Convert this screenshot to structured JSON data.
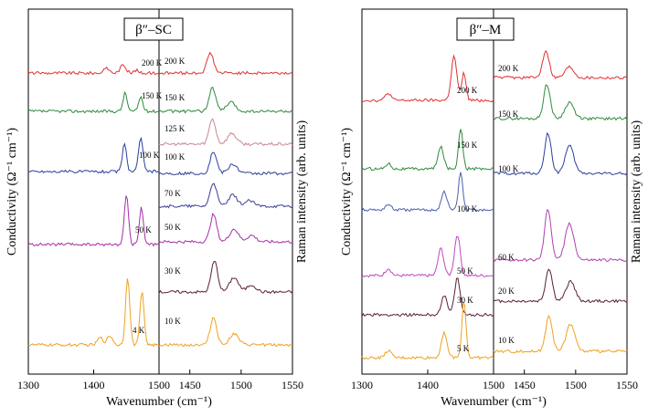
{
  "chart_data": [
    {
      "type": "line",
      "title": "β″–SC",
      "xlabel": "Wavenumber (cm⁻¹)",
      "ylabel_left": "Conductivity (Ω⁻¹ cm⁻¹)",
      "ylabel_right": "Raman intensity (arb. units)",
      "left_panel": {
        "xlim": [
          1300,
          1500
        ],
        "ticks": [
          {
            "value": 1300,
            "label": "1300"
          },
          {
            "value": 1400,
            "label": "1400"
          },
          {
            "value": 1500,
            "label": "1500"
          }
        ],
        "series": [
          {
            "name": "200 K",
            "color": "#e03030",
            "peaks": [
              [
                1420,
                5
              ],
              [
                1445,
                9
              ],
              [
                1465,
                3
              ]
            ]
          },
          {
            "name": "150 K",
            "color": "#2f8a3a",
            "peaks": [
              [
                1448,
                20
              ],
              [
                1472,
                16
              ]
            ]
          },
          {
            "name": "100 K",
            "color": "#2a3f9e",
            "peaks": [
              [
                1447,
                30
              ],
              [
                1472,
                38
              ]
            ]
          },
          {
            "name": "50 K",
            "color": "#a62ea6",
            "peaks": [
              [
                1450,
                55
              ],
              [
                1473,
                40
              ]
            ]
          },
          {
            "name": "4 K",
            "color": "#f0a020",
            "peaks": [
              [
                1452,
                75
              ],
              [
                1474,
                58
              ],
              [
                1410,
                8
              ],
              [
                1425,
                10
              ]
            ]
          }
        ]
      },
      "right_panel": {
        "xlim": [
          1420,
          1550
        ],
        "ticks": [
          {
            "value": 1450,
            "label": "1450"
          },
          {
            "value": 1500,
            "label": "1500"
          },
          {
            "value": 1550,
            "label": "1550"
          }
        ],
        "series": [
          {
            "name": "200 K",
            "color": "#e03030",
            "peaks": [
              [
                1470,
                22
              ]
            ]
          },
          {
            "name": "150 K",
            "color": "#2f8a3a",
            "peaks": [
              [
                1472,
                26
              ],
              [
                1490,
                10
              ]
            ]
          },
          {
            "name": "125 K",
            "color": "#c88890",
            "peaks": [
              [
                1472,
                28
              ],
              [
                1491,
                12
              ]
            ]
          },
          {
            "name": "100 K",
            "color": "#2a3f9e",
            "peaks": [
              [
                1473,
                24
              ],
              [
                1492,
                10
              ]
            ]
          },
          {
            "name": "70 K",
            "color": "#3a3a9a",
            "peaks": [
              [
                1473,
                26
              ],
              [
                1492,
                12
              ],
              [
                1508,
                6
              ]
            ]
          },
          {
            "name": "50 K",
            "color": "#a62ea6",
            "peaks": [
              [
                1473,
                30
              ],
              [
                1493,
                14
              ],
              [
                1510,
                7
              ]
            ]
          },
          {
            "name": "30 K",
            "color": "#5a1f3a",
            "peaks": [
              [
                1474,
                34
              ],
              [
                1493,
                16
              ],
              [
                1510,
                8
              ]
            ]
          },
          {
            "name": "10 K",
            "color": "#f0a020",
            "peaks": [
              [
                1473,
                30
              ],
              [
                1493,
                12
              ]
            ]
          }
        ]
      }
    },
    {
      "type": "line",
      "title": "β″–M",
      "xlabel": "Wavenumber (cm⁻¹)",
      "ylabel_left": "Conductivity (Ω⁻¹ cm⁻¹)",
      "ylabel_right": "Raman intensity (arb. units)",
      "left_panel": {
        "xlim": [
          1300,
          1500
        ],
        "ticks": [
          {
            "value": 1300,
            "label": "1300"
          },
          {
            "value": 1400,
            "label": "1400"
          },
          {
            "value": 1500,
            "label": "1500"
          }
        ],
        "series": [
          {
            "name": "200 K",
            "color": "#e03030",
            "peaks": [
              [
                1440,
                48
              ],
              [
                1455,
                30
              ],
              [
                1340,
                8
              ]
            ]
          },
          {
            "name": "150 K",
            "color": "#2f8a3a",
            "peaks": [
              [
                1420,
                24
              ],
              [
                1450,
                45
              ],
              [
                1340,
                6
              ]
            ]
          },
          {
            "name": "100 K",
            "color": "#4a60b0",
            "peaks": [
              [
                1425,
                20
              ],
              [
                1450,
                42
              ],
              [
                1340,
                6
              ]
            ]
          },
          {
            "name": "50 K",
            "color": "#c048c0",
            "peaks": [
              [
                1420,
                30
              ],
              [
                1445,
                45
              ],
              [
                1340,
                8
              ]
            ]
          },
          {
            "name": "30 K",
            "color": "#5a1f3a",
            "peaks": [
              [
                1425,
                22
              ],
              [
                1445,
                40
              ]
            ]
          },
          {
            "name": "5 K",
            "color": "#f0a020",
            "peaks": [
              [
                1425,
                28
              ],
              [
                1455,
                62
              ],
              [
                1340,
                8
              ]
            ]
          }
        ]
      },
      "right_panel": {
        "xlim": [
          1420,
          1550
        ],
        "ticks": [
          {
            "value": 1450,
            "label": "1450"
          },
          {
            "value": 1500,
            "label": "1500"
          },
          {
            "value": 1550,
            "label": "1550"
          }
        ],
        "series": [
          {
            "name": "200 K",
            "color": "#e03030",
            "peaks": [
              [
                1471,
                30
              ],
              [
                1494,
                12
              ]
            ]
          },
          {
            "name": "150 K",
            "color": "#2f8a3a",
            "peaks": [
              [
                1472,
                38
              ],
              [
                1494,
                18
              ]
            ]
          },
          {
            "name": "100 K",
            "color": "#2a3f9e",
            "peaks": [
              [
                1473,
                44
              ],
              [
                1494,
                30
              ]
            ]
          },
          {
            "name": "60 K",
            "color": "#b040b0",
            "peaks": [
              [
                1473,
                56
              ],
              [
                1494,
                40
              ]
            ]
          },
          {
            "name": "20 K",
            "color": "#5a1f3a",
            "peaks": [
              [
                1474,
                36
              ],
              [
                1495,
                22
              ]
            ]
          },
          {
            "name": "10 K",
            "color": "#f0a020",
            "peaks": [
              [
                1474,
                40
              ],
              [
                1495,
                30
              ]
            ]
          }
        ]
      }
    }
  ]
}
